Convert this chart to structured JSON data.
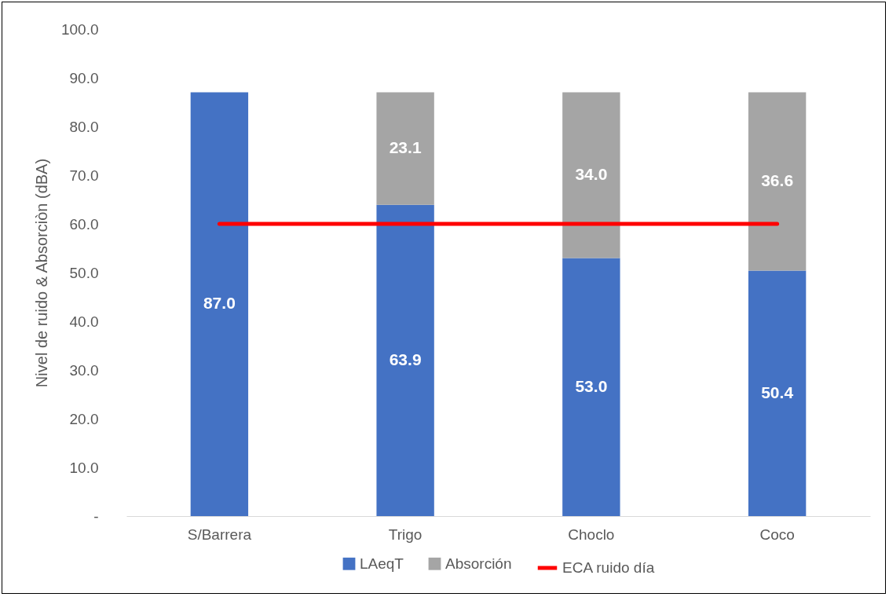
{
  "chart_data": {
    "type": "bar",
    "stacked": true,
    "ylabel": "Nivel de ruido & Absorciòn (dBA)",
    "categories": [
      "S/Barrera",
      "Trigo",
      "Choclo",
      "Coco"
    ],
    "series": [
      {
        "name": "LAeqT",
        "color": "#4472c4",
        "values": [
          87.0,
          63.9,
          53.0,
          50.4
        ],
        "value_labels": [
          "87.0",
          "63.9",
          "53.0",
          "50.4"
        ]
      },
      {
        "name": "Absorción",
        "color": "#a5a5a5",
        "values": [
          0,
          23.1,
          34.0,
          36.6
        ],
        "value_labels": [
          null,
          "23.1",
          "34.0",
          "36.6"
        ]
      },
      {
        "name": "ECA ruido día",
        "type": "line",
        "color": "#ff0000",
        "values": [
          60,
          60,
          60,
          60
        ]
      }
    ],
    "ylim": [
      0,
      100
    ],
    "yticks": [
      {
        "value": 0,
        "label": "-"
      },
      {
        "value": 10,
        "label": "10.0"
      },
      {
        "value": 20,
        "label": "20.0"
      },
      {
        "value": 30,
        "label": "30.0"
      },
      {
        "value": 40,
        "label": "40.0"
      },
      {
        "value": 50,
        "label": "50.0"
      },
      {
        "value": 60,
        "label": "60.0"
      },
      {
        "value": 70,
        "label": "70.0"
      },
      {
        "value": 80,
        "label": "80.0"
      },
      {
        "value": 90,
        "label": "90.0"
      },
      {
        "value": 100,
        "label": "100.0"
      }
    ],
    "grid": false,
    "legend": "bottom"
  }
}
